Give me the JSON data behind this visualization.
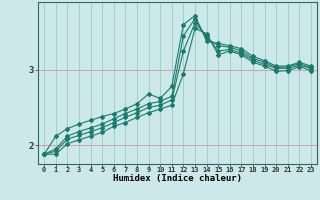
{
  "xlabel": "Humidex (Indice chaleur)",
  "bg_color": "#cce8e8",
  "line_color": "#1a7a6e",
  "grid_h_color": "#d4a0a0",
  "grid_v_color": "#9ecece",
  "xlim": [
    -0.5,
    23.5
  ],
  "ylim": [
    1.75,
    3.9
  ],
  "yticks": [
    2,
    3
  ],
  "xticks": [
    0,
    1,
    2,
    3,
    4,
    5,
    6,
    7,
    8,
    9,
    10,
    11,
    12,
    13,
    14,
    15,
    16,
    17,
    18,
    19,
    20,
    21,
    22,
    23
  ],
  "series": [
    [
      1.88,
      2.12,
      2.22,
      2.28,
      2.33,
      2.38,
      2.42,
      2.48,
      2.55,
      2.68,
      2.62,
      2.78,
      3.6,
      3.72,
      3.38,
      3.35,
      3.32,
      3.28,
      3.18,
      3.12,
      3.05,
      3.05,
      3.1,
      3.05
    ],
    [
      1.88,
      1.95,
      2.12,
      2.18,
      2.23,
      2.28,
      2.35,
      2.42,
      2.48,
      2.55,
      2.58,
      2.65,
      3.45,
      3.68,
      3.42,
      3.32,
      3.3,
      3.25,
      3.15,
      3.1,
      3.03,
      3.04,
      3.08,
      3.03
    ],
    [
      1.88,
      1.92,
      2.08,
      2.13,
      2.18,
      2.23,
      2.3,
      2.37,
      2.43,
      2.5,
      2.53,
      2.6,
      3.25,
      3.62,
      3.45,
      3.25,
      3.27,
      3.22,
      3.13,
      3.07,
      3.02,
      3.02,
      3.06,
      3.02
    ],
    [
      1.88,
      1.88,
      2.02,
      2.07,
      2.12,
      2.17,
      2.25,
      2.3,
      2.37,
      2.43,
      2.48,
      2.53,
      2.95,
      3.55,
      3.48,
      3.2,
      3.25,
      3.2,
      3.1,
      3.05,
      2.98,
      2.99,
      3.04,
      2.99
    ]
  ]
}
